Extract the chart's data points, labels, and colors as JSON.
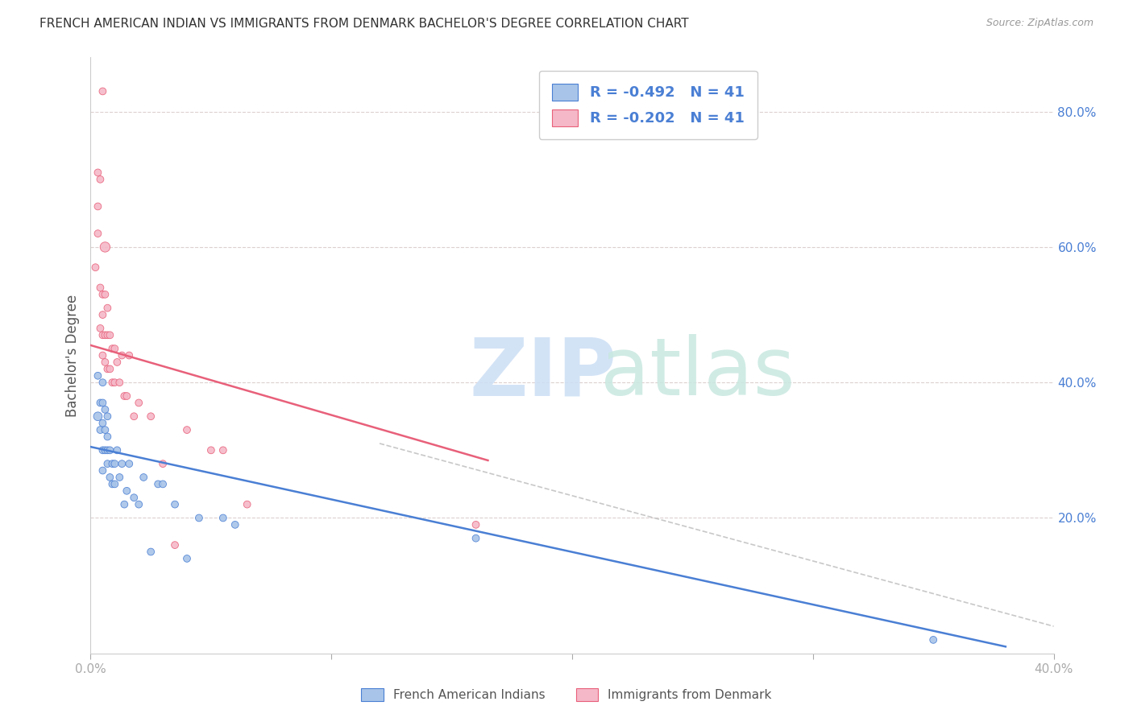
{
  "title": "FRENCH AMERICAN INDIAN VS IMMIGRANTS FROM DENMARK BACHELOR'S DEGREE CORRELATION CHART",
  "source": "Source: ZipAtlas.com",
  "ylabel": "Bachelor's Degree",
  "watermark_zip": "ZIP",
  "watermark_atlas": "atlas",
  "legend_r1": "-0.492",
  "legend_n1": "41",
  "legend_r2": "-0.202",
  "legend_n2": "41",
  "legend_label1": "French American Indians",
  "legend_label2": "Immigrants from Denmark",
  "blue_color": "#a8c4e8",
  "pink_color": "#f5b8c8",
  "blue_line_color": "#4a7fd4",
  "pink_line_color": "#e8607a",
  "dashed_line_color": "#c8c8c8",
  "background_color": "#ffffff",
  "grid_color": "#ddd0d0",
  "xlim": [
    0.0,
    0.4
  ],
  "ylim": [
    0.0,
    0.88
  ],
  "yticks": [
    0.2,
    0.4,
    0.6,
    0.8
  ],
  "ytick_labels": [
    "20.0%",
    "40.0%",
    "60.0%",
    "80.0%"
  ],
  "xticks": [
    0.0,
    0.1,
    0.2,
    0.3,
    0.4
  ],
  "xtick_labels": [
    "0.0%",
    "",
    "",
    "",
    "40.0%"
  ],
  "blue_scatter_x": [
    0.003,
    0.004,
    0.004,
    0.005,
    0.005,
    0.005,
    0.005,
    0.005,
    0.006,
    0.006,
    0.006,
    0.007,
    0.007,
    0.007,
    0.007,
    0.008,
    0.008,
    0.009,
    0.009,
    0.01,
    0.01,
    0.011,
    0.012,
    0.013,
    0.014,
    0.015,
    0.016,
    0.018,
    0.02,
    0.022,
    0.025,
    0.028,
    0.03,
    0.035,
    0.04,
    0.045,
    0.055,
    0.06,
    0.16,
    0.35,
    0.003
  ],
  "blue_scatter_y": [
    0.35,
    0.33,
    0.37,
    0.27,
    0.3,
    0.34,
    0.37,
    0.4,
    0.3,
    0.33,
    0.36,
    0.28,
    0.3,
    0.32,
    0.35,
    0.26,
    0.3,
    0.25,
    0.28,
    0.25,
    0.28,
    0.3,
    0.26,
    0.28,
    0.22,
    0.24,
    0.28,
    0.23,
    0.22,
    0.26,
    0.15,
    0.25,
    0.25,
    0.22,
    0.14,
    0.2,
    0.2,
    0.19,
    0.17,
    0.02,
    0.41
  ],
  "blue_scatter_sizes": [
    60,
    40,
    40,
    40,
    40,
    40,
    40,
    40,
    40,
    40,
    40,
    40,
    40,
    40,
    40,
    40,
    40,
    40,
    40,
    40,
    40,
    40,
    40,
    40,
    40,
    40,
    40,
    40,
    40,
    40,
    40,
    40,
    40,
    40,
    40,
    40,
    40,
    40,
    40,
    40,
    40
  ],
  "pink_scatter_x": [
    0.002,
    0.003,
    0.003,
    0.004,
    0.004,
    0.005,
    0.005,
    0.005,
    0.005,
    0.006,
    0.006,
    0.006,
    0.007,
    0.007,
    0.007,
    0.008,
    0.008,
    0.009,
    0.009,
    0.01,
    0.01,
    0.011,
    0.012,
    0.013,
    0.014,
    0.015,
    0.016,
    0.018,
    0.02,
    0.025,
    0.03,
    0.035,
    0.04,
    0.05,
    0.055,
    0.065,
    0.16,
    0.003,
    0.004,
    0.005,
    0.006
  ],
  "pink_scatter_y": [
    0.57,
    0.62,
    0.66,
    0.48,
    0.54,
    0.44,
    0.47,
    0.5,
    0.53,
    0.43,
    0.47,
    0.53,
    0.42,
    0.47,
    0.51,
    0.42,
    0.47,
    0.4,
    0.45,
    0.4,
    0.45,
    0.43,
    0.4,
    0.44,
    0.38,
    0.38,
    0.44,
    0.35,
    0.37,
    0.35,
    0.28,
    0.16,
    0.33,
    0.3,
    0.3,
    0.22,
    0.19,
    0.71,
    0.7,
    0.83,
    0.6
  ],
  "pink_scatter_sizes": [
    40,
    40,
    40,
    40,
    40,
    40,
    40,
    40,
    40,
    40,
    40,
    40,
    40,
    40,
    40,
    40,
    40,
    40,
    40,
    40,
    40,
    40,
    40,
    40,
    40,
    40,
    40,
    40,
    40,
    40,
    40,
    40,
    40,
    40,
    40,
    40,
    40,
    40,
    40,
    40,
    80
  ],
  "blue_line_x": [
    0.0,
    0.38
  ],
  "blue_line_y": [
    0.305,
    0.01
  ],
  "pink_line_x": [
    0.0,
    0.165
  ],
  "pink_line_y": [
    0.455,
    0.285
  ],
  "dash_line_x": [
    0.12,
    0.4
  ],
  "dash_line_y": [
    0.31,
    0.04
  ]
}
